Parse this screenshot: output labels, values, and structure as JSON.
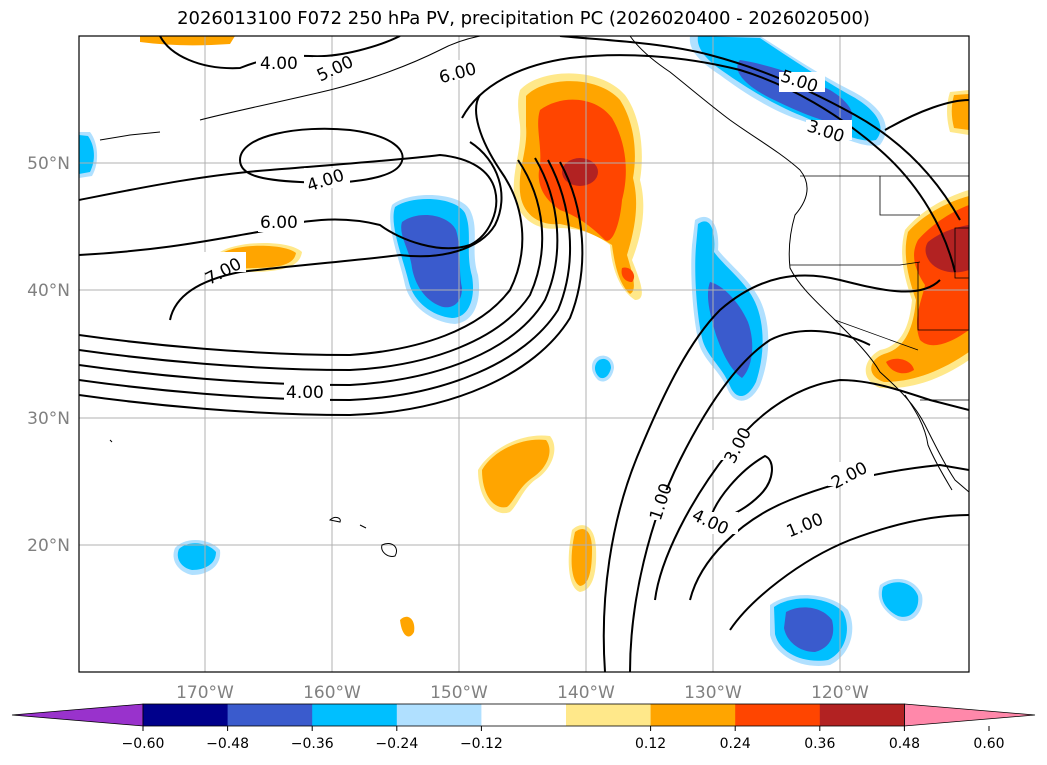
{
  "title": "2026013100 F072 250 hPa PV, precipitation PC (2026020400 - 2026020500)",
  "map": {
    "lon_labels": [
      "170°W",
      "160°W",
      "150°W",
      "140°W",
      "130°W",
      "120°W"
    ],
    "lat_labels": [
      "50°N",
      "40°N",
      "30°N",
      "20°N"
    ]
  },
  "contour_labels": [
    "4.00",
    "5.00",
    "6.00",
    "4.00",
    "6.00",
    "7.00",
    "4.00",
    "5.00",
    "3.00",
    "3.00",
    "1.00",
    "4.00",
    "2.00",
    "1.00"
  ],
  "colorbar": {
    "ticks": [
      "−0.60",
      "−0.48",
      "−0.36",
      "−0.24",
      "−0.12",
      "0.12",
      "0.24",
      "0.36",
      "0.48",
      "0.60"
    ],
    "colors": {
      "under": "#9932cc",
      "bins": [
        "#00008b",
        "#3a5bcd",
        "#00bfff",
        "#b0e0ff",
        "#ffffff",
        "#ffe88a",
        "#ffa500",
        "#ff4500",
        "#b22222"
      ],
      "over": "#ff88aa"
    }
  }
}
